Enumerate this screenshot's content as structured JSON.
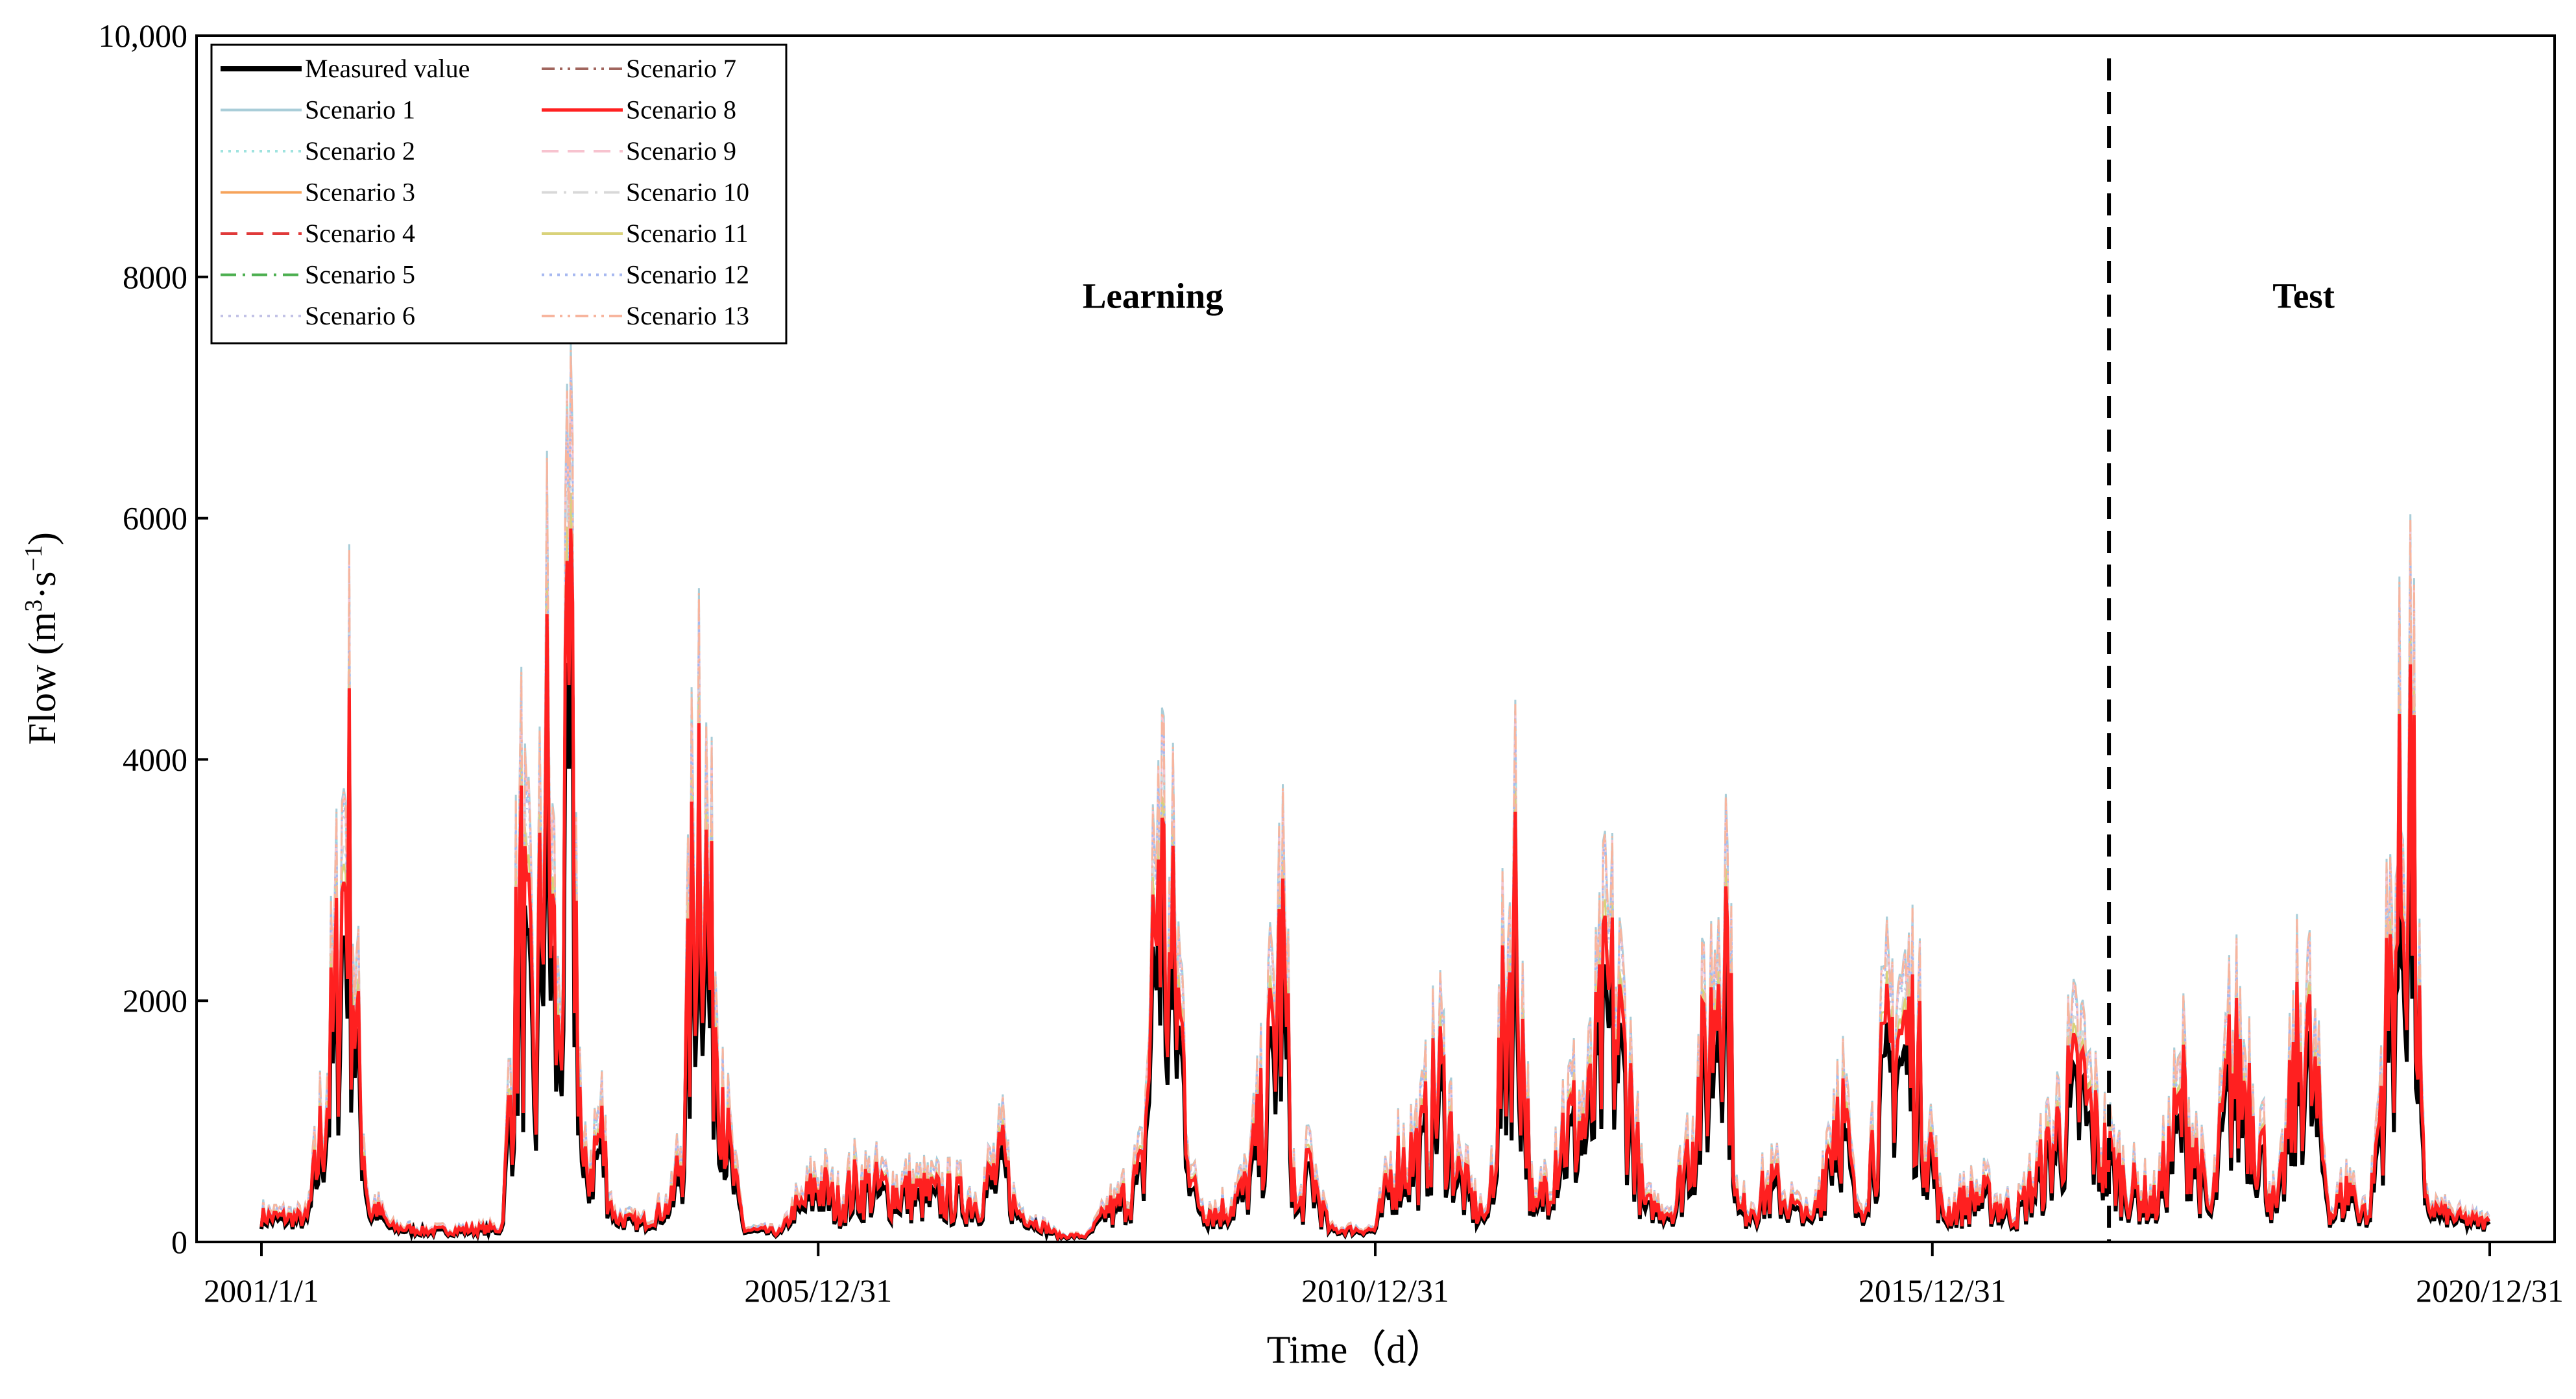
{
  "chart_data": {
    "type": "line",
    "title": "",
    "xlabel": "Time（d）",
    "ylabel_main": "Flow (m",
    "ylabel_sup1": "3",
    "ylabel_mid": "·s",
    "ylabel_sup2": "−1",
    "ylabel_end": ")",
    "xlim": [
      "2001-01-01",
      "2020-12-31"
    ],
    "ylim": [
      0,
      10000
    ],
    "xticks": [
      {
        "date": "2001-01-01",
        "label": "2001/1/1"
      },
      {
        "date": "2005-12-31",
        "label": "2005/12/31"
      },
      {
        "date": "2010-12-31",
        "label": "2010/12/31"
      },
      {
        "date": "2015-12-31",
        "label": "2015/12/31"
      },
      {
        "date": "2020-12-31",
        "label": "2020/12/31"
      }
    ],
    "yticks": [
      {
        "value": 0,
        "label": "0"
      },
      {
        "value": 2000,
        "label": "2000"
      },
      {
        "value": 4000,
        "label": "4000"
      },
      {
        "value": 6000,
        "label": "6000"
      },
      {
        "value": 8000,
        "label": "8000"
      },
      {
        "value": 10000,
        "label": "10,000"
      }
    ],
    "grid": false,
    "legend_position": "top-left",
    "split_date": "2017-08-01",
    "regions": [
      {
        "label": "Learning",
        "date": "2009-01-01",
        "y": 7850
      },
      {
        "label": "Test",
        "date": "2019-05-01",
        "y": 7850
      }
    ],
    "series": [
      {
        "name": "Measured value",
        "color": "#000000",
        "style": "solid",
        "width": 6,
        "scale": 0.85,
        "drawn": true
      },
      {
        "name": "Scenario 1",
        "color": "#a9cdd8",
        "style": "solid",
        "width": 3,
        "scale": 1.26,
        "drawn": true
      },
      {
        "name": "Scenario 2",
        "color": "#9fe3df",
        "style": "dotted",
        "width": 3,
        "scale": 1.23,
        "drawn": true
      },
      {
        "name": "Scenario 3",
        "color": "#f6a35a",
        "style": "solid",
        "width": 3,
        "scale": 1.0,
        "drawn": true
      },
      {
        "name": "Scenario 4",
        "color": "#e03a3a",
        "style": "dashed",
        "width": 3,
        "scale": 1.0,
        "drawn": true
      },
      {
        "name": "Scenario 5",
        "color": "#4caf50",
        "style": "dashdot",
        "width": 3,
        "scale": 1.0,
        "drawn": true
      },
      {
        "name": "Scenario 6",
        "color": "#c2c2e6",
        "style": "dotted",
        "width": 3,
        "scale": 1.2,
        "drawn": true
      },
      {
        "name": "Scenario 7",
        "color": "#a1665e",
        "style": "dashdotdot",
        "width": 3,
        "scale": 1.0,
        "drawn": true
      },
      {
        "name": "Scenario 8",
        "color": "#ff2020",
        "style": "solid",
        "width": 5,
        "scale": 1.0,
        "drawn": true
      },
      {
        "name": "Scenario 9",
        "color": "#f7c3cf",
        "style": "dashed",
        "width": 3,
        "scale": 1.24,
        "drawn": true
      },
      {
        "name": "Scenario 10",
        "color": "#d8d8d8",
        "style": "dashdot",
        "width": 3,
        "scale": 1.1,
        "drawn": true
      },
      {
        "name": "Scenario 11",
        "color": "#d9d27a",
        "style": "solid",
        "width": 3,
        "scale": 1.05,
        "drawn": true
      },
      {
        "name": "Scenario 12",
        "color": "#a7b8f0",
        "style": "dotted",
        "width": 3,
        "scale": 1.22,
        "drawn": true
      },
      {
        "name": "Scenario 13",
        "color": "#f7b59e",
        "style": "dashdotdot",
        "width": 3,
        "scale": 1.25,
        "drawn": true
      }
    ],
    "scenario8_approx": {
      "note_series": "Scenario 8",
      "points": [
        [
          "2001-01-01",
          210
        ],
        [
          "2001-06-01",
          190
        ],
        [
          "2001-08-01",
          1500
        ],
        [
          "2001-09-01",
          2450
        ],
        [
          "2001-10-10",
          4600
        ],
        [
          "2001-11-10",
          2050
        ],
        [
          "2001-12-20",
          350
        ],
        [
          "2002-03-01",
          120
        ],
        [
          "2002-07-01",
          90
        ],
        [
          "2003-03-01",
          110
        ],
        [
          "2003-05-01",
          3500
        ],
        [
          "2003-06-20",
          1700
        ],
        [
          "2003-07-20",
          5200
        ],
        [
          "2003-09-01",
          1900
        ],
        [
          "2003-10-10",
          5700
        ],
        [
          "2003-11-20",
          600
        ],
        [
          "2004-01-20",
          1200
        ],
        [
          "2004-03-01",
          200
        ],
        [
          "2004-06-01",
          150
        ],
        [
          "2004-09-01",
          300
        ],
        [
          "2004-10-15",
          1100
        ],
        [
          "2004-12-10",
          5500
        ],
        [
          "2005-01-10",
          2850
        ],
        [
          "2005-02-10",
          2500
        ],
        [
          "2005-03-10",
          1000
        ],
        [
          "2005-05-01",
          100
        ],
        [
          "2005-09-01",
          80
        ],
        [
          "2005-11-01",
          350
        ],
        [
          "2006-01-01",
          650
        ],
        [
          "2006-03-01",
          400
        ],
        [
          "2006-05-01",
          600
        ],
        [
          "2007-01-01",
          500
        ],
        [
          "2007-06-01",
          450
        ],
        [
          "2007-09-01",
          850
        ],
        [
          "2007-10-15",
          250
        ],
        [
          "2008-03-01",
          50
        ],
        [
          "2008-06-01",
          50
        ],
        [
          "2008-09-01",
          350
        ],
        [
          "2008-12-01",
          750
        ],
        [
          "2009-01-20",
          4300
        ],
        [
          "2009-02-20",
          2800
        ],
        [
          "2009-03-15",
          2900
        ],
        [
          "2009-04-15",
          1800
        ],
        [
          "2009-05-15",
          500
        ],
        [
          "2009-08-01",
          300
        ],
        [
          "2009-11-01",
          550
        ],
        [
          "2010-01-01",
          1350
        ],
        [
          "2010-03-01",
          3050
        ],
        [
          "2010-04-15",
          200
        ],
        [
          "2010-06-01",
          800
        ],
        [
          "2010-08-01",
          100
        ],
        [
          "2011-01-01",
          100
        ],
        [
          "2011-03-01",
          800
        ],
        [
          "2011-06-01",
          1000
        ],
        [
          "2011-08-01",
          1700
        ],
        [
          "2011-10-01",
          700
        ],
        [
          "2012-01-01",
          150
        ],
        [
          "2012-04-01",
          3550
        ],
        [
          "2012-06-01",
          200
        ],
        [
          "2012-09-01",
          1200
        ],
        [
          "2012-12-01",
          1300
        ],
        [
          "2013-02-01",
          2600
        ],
        [
          "2013-04-01",
          1900
        ],
        [
          "2013-06-01",
          300
        ],
        [
          "2013-09-01",
          250
        ],
        [
          "2014-01-01",
          2100
        ],
        [
          "2014-02-15",
          4000
        ],
        [
          "2014-04-01",
          300
        ],
        [
          "2014-08-01",
          600
        ],
        [
          "2014-12-01",
          150
        ],
        [
          "2015-03-01",
          1650
        ],
        [
          "2015-05-01",
          200
        ],
        [
          "2015-09-01",
          2350
        ],
        [
          "2015-11-01",
          2050
        ],
        [
          "2016-02-01",
          300
        ],
        [
          "2016-06-01",
          500
        ],
        [
          "2016-10-01",
          300
        ],
        [
          "2017-01-01",
          800
        ],
        [
          "2017-03-01",
          1300
        ],
        [
          "2017-05-01",
          1700
        ],
        [
          "2017-07-01",
          1000
        ],
        [
          "2017-10-01",
          600
        ],
        [
          "2018-01-01",
          400
        ],
        [
          "2018-04-01",
          1500
        ],
        [
          "2018-07-01",
          250
        ],
        [
          "2018-09-01",
          1800
        ],
        [
          "2018-11-01",
          1700
        ],
        [
          "2019-02-01",
          250
        ],
        [
          "2019-05-01",
          2350
        ],
        [
          "2019-08-01",
          300
        ],
        [
          "2019-10-01",
          600
        ],
        [
          "2019-12-01",
          150
        ],
        [
          "2020-03-01",
          3450
        ],
        [
          "2020-04-15",
          4850
        ],
        [
          "2020-06-01",
          300
        ],
        [
          "2020-09-01",
          200
        ],
        [
          "2020-12-31",
          150
        ]
      ]
    }
  }
}
